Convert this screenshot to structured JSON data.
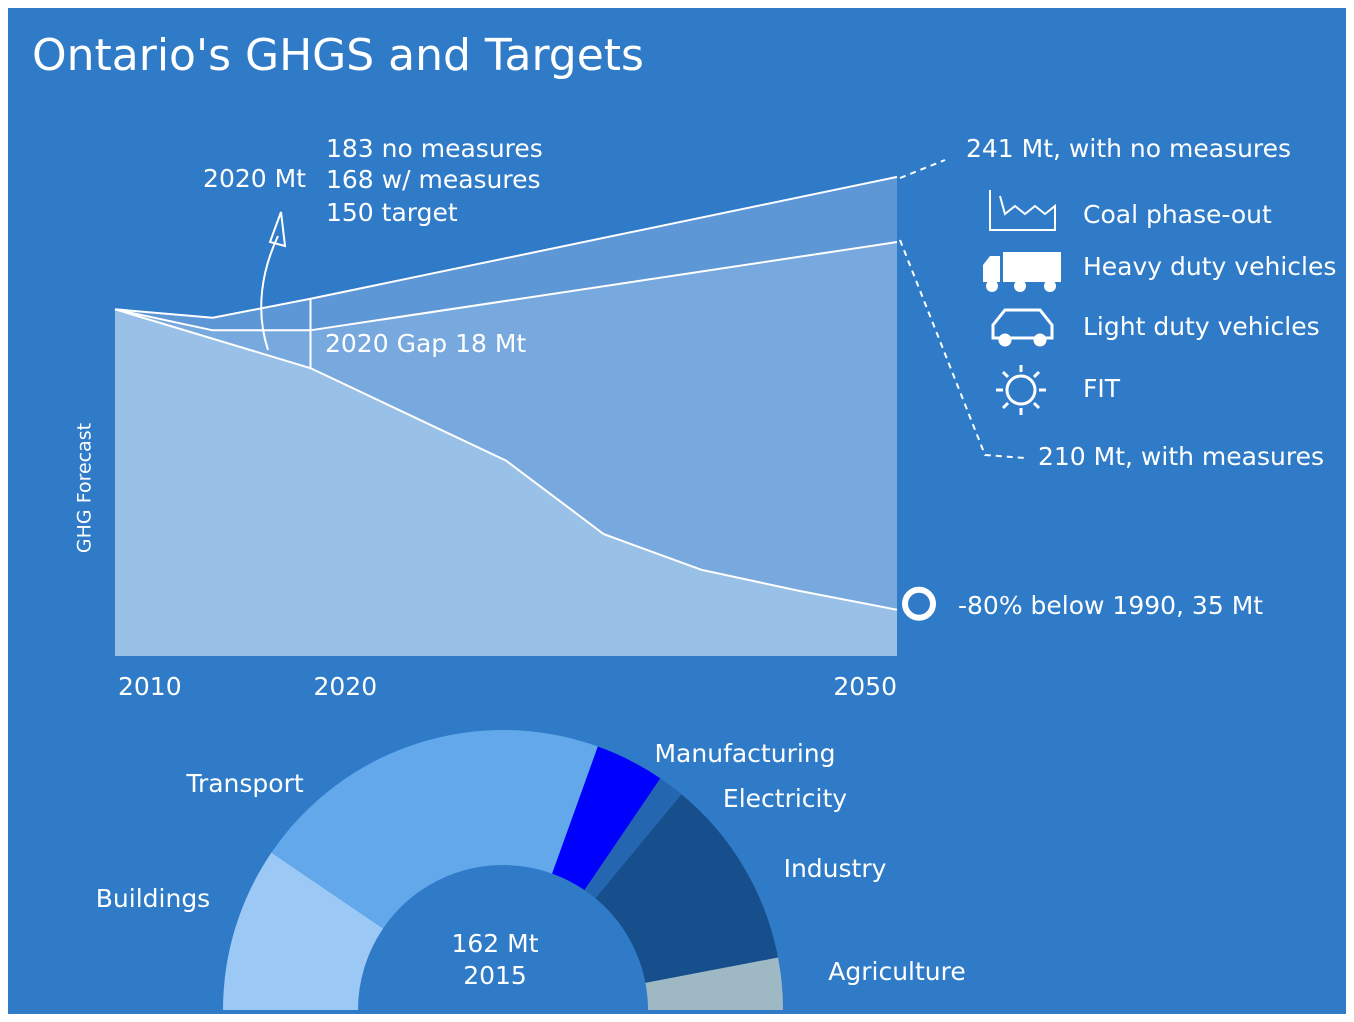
{
  "title": "Ontario's GHGS and Targets",
  "chart_data": [
    {
      "type": "area",
      "ylabel": "GHG Forecast",
      "xlim": [
        2010,
        2050
      ],
      "ylim": [
        13,
        250
      ],
      "xticks": [
        2010,
        2020,
        2050
      ],
      "series": [
        {
          "color": "#5e97d5",
          "x": [
            2010,
            2015,
            2020,
            2050
          ],
          "values": [
            178,
            174,
            183,
            241
          ]
        },
        {
          "color": "#78a9de",
          "x": [
            2010,
            2015,
            2020,
            2050
          ],
          "values": [
            178,
            168,
            168,
            210
          ]
        },
        {
          "color": "#99c0e7",
          "x": [
            2010,
            2020,
            2030,
            2035,
            2040,
            2045,
            2050
          ],
          "values": [
            178,
            150,
            106,
            71,
            54,
            44,
            35
          ]
        }
      ],
      "annotations": [
        "183 no measures",
        "168 w/ measures",
        "150 target",
        "2020 Mt",
        "2020 Gap 18 Mt",
        "241 Mt, with no measures",
        "210 Mt, with measures",
        "-80% below 1990, 35 Mt"
      ],
      "measures": [
        "Coal phase-out",
        "Heavy duty vehicles",
        "Light duty vehicles",
        "FIT"
      ]
    },
    {
      "type": "pie",
      "half": true,
      "categories": [
        "Buildings",
        "Transport",
        "Manufacturing",
        "Electricity",
        "Industry",
        "Agriculture"
      ],
      "values": [
        19,
        42,
        8,
        3,
        22,
        6
      ],
      "colors": [
        "#9cc8f5",
        "#62a8ea",
        "#0000ff",
        "#2466b0",
        "#174f8c",
        "#9fb9c4"
      ],
      "center_text": [
        "162 Mt",
        "2015"
      ]
    }
  ]
}
